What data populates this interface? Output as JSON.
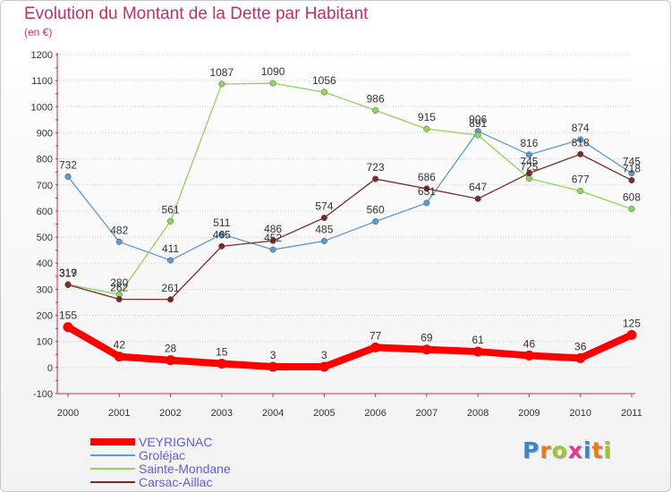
{
  "header": {
    "title": "Evolution du Montant de la Dette par Habitant",
    "subtitle": "(en €)"
  },
  "brand": {
    "letters": [
      "P",
      "r",
      "o",
      "x",
      "i",
      "t",
      "i"
    ],
    "colors": [
      "#3c86c8",
      "#e87b1e",
      "#9bc43a",
      "#e23a8a",
      "#3c86c8",
      "#e87b1e",
      "#9bc43a"
    ]
  },
  "chart_data": {
    "type": "line",
    "x": [
      "2000",
      "2001",
      "2002",
      "2003",
      "2004",
      "2005",
      "2006",
      "2007",
      "2008",
      "2009",
      "2010",
      "2011"
    ],
    "ylim": [
      -100,
      1200
    ],
    "yticks": [
      -100,
      0,
      100,
      200,
      300,
      400,
      500,
      600,
      700,
      800,
      900,
      1000,
      1100,
      1200
    ],
    "grid": "horizontal",
    "legend_position": "bottom-left",
    "series": [
      {
        "name": "VEYRIGNAC",
        "color": "#ff0000",
        "values": [
          155,
          42,
          28,
          15,
          3,
          3,
          77,
          69,
          61,
          46,
          36,
          125
        ]
      },
      {
        "name": "Groléjac",
        "color": "#5c9bd1",
        "values": [
          732,
          482,
          411,
          511,
          452,
          485,
          560,
          631,
          906,
          816,
          874,
          745
        ]
      },
      {
        "name": "Sainte-Mondane",
        "color": "#8fd45c",
        "values": [
          319,
          280,
          561,
          1087,
          1090,
          1056,
          986,
          915,
          891,
          725,
          677,
          608
        ]
      },
      {
        "name": "Carsac-Aillac",
        "color": "#7a2a2a",
        "values": [
          317,
          262,
          261,
          465,
          486,
          574,
          723,
          686,
          647,
          745,
          818,
          718
        ]
      }
    ]
  }
}
